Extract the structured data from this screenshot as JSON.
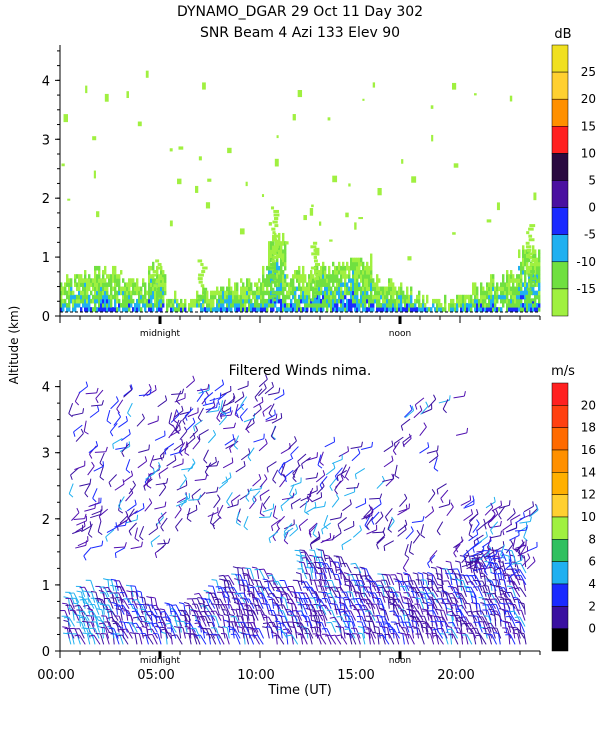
{
  "title": {
    "line1": "DYNAMO_DGAR  29 Oct 11 Day 302",
    "line2": "SNR Beam 4 Azi 133 Elev 90"
  },
  "ylabel": "Altitude (km)",
  "xlabel": "Time (UT)",
  "chart_data": [
    {
      "type": "heatmap",
      "title": "SNR Beam 4 Azi 133 Elev 90",
      "ylim": [
        0,
        4.6
      ],
      "yticks": [
        "0",
        "1",
        "2",
        "3",
        "4"
      ],
      "x_annotations": [
        "midnight",
        "noon"
      ],
      "colorbar": {
        "unit": "dB",
        "labels": [
          "25",
          "20",
          "15",
          "10",
          "5",
          "0",
          "-5",
          "-10",
          "-15"
        ],
        "colors": [
          "#f0e020",
          "#ffd030",
          "#ff9000",
          "#ff2020",
          "#2a0a40",
          "#4a10a0",
          "#1a2aff",
          "#20b0f0",
          "#70e040",
          "#a0f040"
        ]
      }
    },
    {
      "type": "scatter",
      "title": "Filtered Winds nima.",
      "ylim": [
        0,
        4.1
      ],
      "yticks": [
        "0",
        "1",
        "2",
        "3",
        "4"
      ],
      "xticks": [
        "00:00",
        "05:00",
        "10:00",
        "15:00",
        "20:00"
      ],
      "x_annotations": [
        "midnight",
        "noon"
      ],
      "colorbar": {
        "unit": "m/s",
        "labels": [
          "20",
          "18",
          "16",
          "14",
          "12",
          "10",
          "8",
          "6",
          "4",
          "2",
          "0"
        ],
        "colors": [
          "#ff2020",
          "#ff4010",
          "#ff6a00",
          "#ff9000",
          "#ffb000",
          "#ffd030",
          "#a0f040",
          "#30c060",
          "#20b0f0",
          "#1a2aff",
          "#3a10a0",
          "#000000"
        ]
      }
    }
  ]
}
